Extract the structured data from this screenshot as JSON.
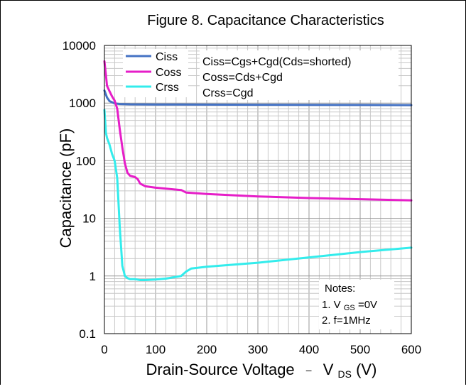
{
  "chart_data": {
    "type": "line",
    "title": "Figure 8. Capacitance Characteristics",
    "xlabel": "Drain-Source Voltage",
    "xlabel_sep": "–",
    "xlabel_var": "V",
    "xlabel_var_sub": "DS",
    "xlabel_unit": "(V)",
    "ylabel": "Capacitance (pF)",
    "xlim": [
      0,
      600
    ],
    "ylim": [
      0.1,
      10000
    ],
    "y_scale": "log",
    "grid": true,
    "x_ticks": [
      "0",
      "100",
      "200",
      "300",
      "400",
      "500",
      "600"
    ],
    "y_ticks": [
      "0.1",
      "1",
      "10",
      "100",
      "1000",
      "10000"
    ],
    "legend_position": "top-left",
    "series": [
      {
        "name": "Ciss",
        "color": "#4472c4",
        "x": [
          0,
          5,
          10,
          20,
          30,
          50,
          100,
          200,
          300,
          400,
          500,
          600
        ],
        "y": [
          1650,
          1250,
          1080,
          990,
          960,
          950,
          945,
          940,
          935,
          930,
          925,
          920
        ]
      },
      {
        "name": "Coss",
        "color": "#e61ec8",
        "x": [
          0,
          3,
          5,
          10,
          15,
          20,
          25,
          30,
          35,
          40,
          45,
          50,
          60,
          65,
          70,
          80,
          100,
          150,
          160,
          200,
          300,
          400,
          500,
          600
        ],
        "y": [
          5300,
          3000,
          2000,
          1600,
          1300,
          1100,
          800,
          350,
          170,
          90,
          62,
          55,
          52,
          48,
          40,
          36,
          34,
          31,
          28,
          26.5,
          24,
          22.5,
          21.5,
          20.5
        ]
      },
      {
        "name": "Crss",
        "color": "#33ecec",
        "x": [
          0,
          3,
          5,
          10,
          15,
          20,
          25,
          30,
          35,
          40,
          45,
          50,
          60,
          70,
          80,
          100,
          120,
          150,
          160,
          170,
          200,
          300,
          400,
          500,
          600
        ],
        "y": [
          760,
          300,
          250,
          190,
          130,
          100,
          50,
          7,
          1.5,
          1.0,
          0.92,
          0.88,
          0.88,
          0.85,
          0.85,
          0.87,
          0.9,
          1.0,
          1.2,
          1.35,
          1.45,
          1.7,
          2.1,
          2.6,
          3.1
        ]
      }
    ],
    "equations": [
      "Ciss=Cgs+Cgd(Cds=shorted)",
      "Coss=Cds+Cgd",
      "Crss=Cgd"
    ],
    "notes": {
      "heading": "Notes:",
      "line1_prefix": "1. V",
      "line1_sub": "GS",
      "line1_suffix": "=0V",
      "line2": "2. f=1MHz"
    }
  }
}
